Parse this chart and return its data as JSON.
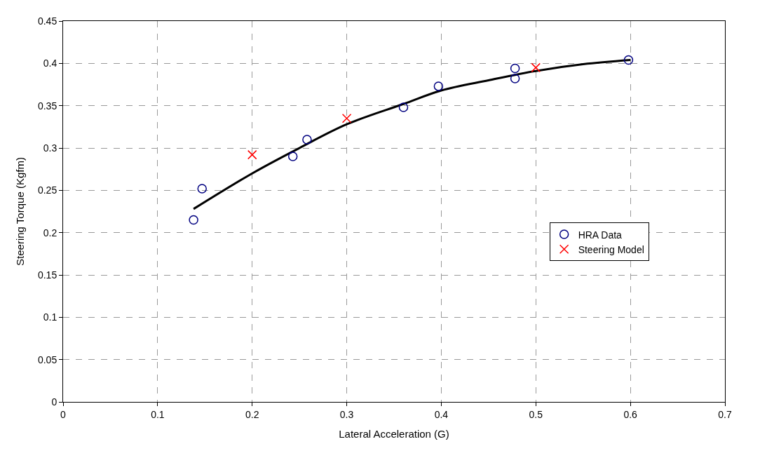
{
  "chart_data": {
    "type": "scatter",
    "xlabel": "Lateral Acceleration (G)",
    "ylabel": "Steering Torque (Kgfm)",
    "xlim": [
      0,
      0.7
    ],
    "ylim": [
      0,
      0.45
    ],
    "xticks": [
      0,
      0.1,
      0.2,
      0.3,
      0.4,
      0.5,
      0.6,
      0.7
    ],
    "yticks": [
      0,
      0.05,
      0.1,
      0.15,
      0.2,
      0.25,
      0.3,
      0.35,
      0.4,
      0.45
    ],
    "grid": true,
    "legend": "right",
    "series": [
      {
        "type": "line",
        "color": "#000000",
        "marker": "none",
        "line_style": "solid",
        "x": [
          0.138,
          0.2,
          0.25,
          0.3,
          0.36,
          0.4,
          0.45,
          0.5,
          0.55,
          0.6
        ],
        "values": [
          0.228,
          0.27,
          0.3,
          0.328,
          0.352,
          0.368,
          0.38,
          0.391,
          0.399,
          0.404
        ]
      },
      {
        "name": "HRA Data",
        "color": "#000080",
        "marker": "circle",
        "x": [
          0.138,
          0.147,
          0.243,
          0.258,
          0.36,
          0.397,
          0.478,
          0.478,
          0.598
        ],
        "values": [
          0.215,
          0.252,
          0.29,
          0.31,
          0.348,
          0.373,
          0.394,
          0.382,
          0.404
        ]
      },
      {
        "name": "Steering Model",
        "color": "#ff0000",
        "marker": "cross",
        "x": [
          0.2,
          0.3,
          0.5
        ],
        "values": [
          0.292,
          0.335,
          0.395
        ]
      }
    ]
  }
}
